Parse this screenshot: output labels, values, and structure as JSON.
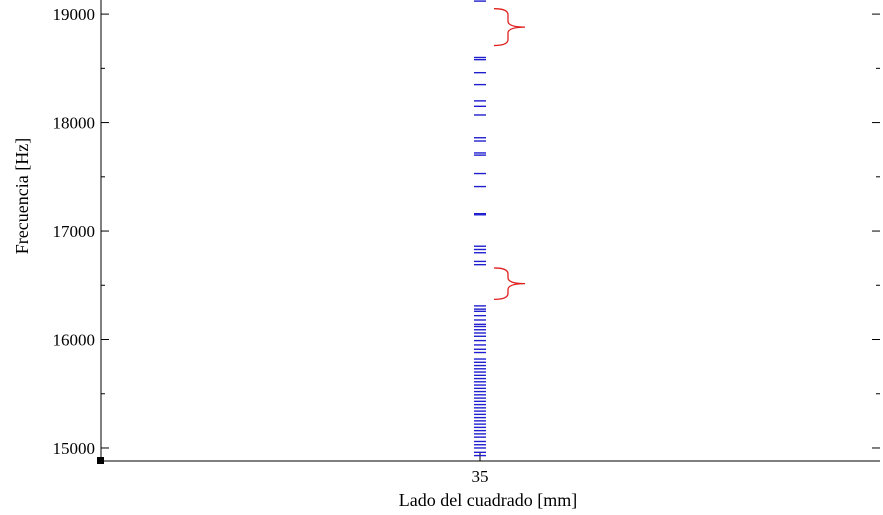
{
  "chart_data": {
    "type": "scatter",
    "marker": "horizontal-dash",
    "xlabel": "Lado del cuadrado [mm]",
    "ylabel": "Frecuencia [Hz]",
    "x_ticks": [
      35
    ],
    "y_ticks": [
      15000,
      16000,
      17000,
      18000,
      19000
    ],
    "ylim": [
      14880,
      19130
    ],
    "grid": false,
    "legend": "none",
    "colors": {
      "series": "#1f1fcf",
      "annotation": "#e0201f",
      "axis": "#000000"
    },
    "series": [
      {
        "x": 35,
        "y": [
          14930,
          14960,
          15000,
          15030,
          15060,
          15100,
          15130,
          15160,
          15190,
          15220,
          15250,
          15280,
          15310,
          15340,
          15370,
          15400,
          15430,
          15460,
          15490,
          15520,
          15550,
          15580,
          15610,
          15640,
          15670,
          15700,
          15730,
          15760,
          15790,
          15820,
          15880,
          15910,
          15950,
          15990,
          16030,
          16060,
          16090,
          16120,
          16140,
          16180,
          16220,
          16260,
          16280,
          16310,
          16690,
          16720,
          16800,
          16830,
          16860,
          17150,
          17160,
          17410,
          17530,
          17700,
          17720,
          17830,
          17860,
          18070,
          18150,
          18200,
          18350,
          18460,
          18580,
          18600,
          19120
        ]
      }
    ],
    "annotations": [
      {
        "type": "curly-brace",
        "y_range": [
          18710,
          19050
        ]
      },
      {
        "type": "curly-brace",
        "y_range": [
          16370,
          16660
        ]
      }
    ]
  }
}
